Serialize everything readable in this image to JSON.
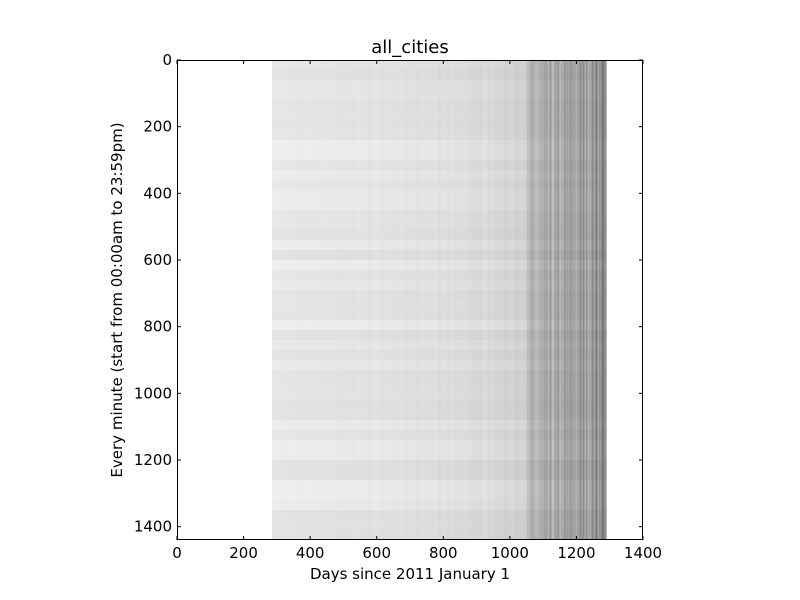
{
  "chart_data": {
    "type": "heatmap",
    "title": "all_cities",
    "xlabel": "Days since 2011 January 1",
    "ylabel": "Every minute (start from 00:00am to 23:59pm)",
    "xlim": [
      0,
      1400
    ],
    "ylim": [
      1440,
      0
    ],
    "y_axis_inverted": true,
    "x_ticks": [
      0,
      200,
      400,
      600,
      800,
      1000,
      1200,
      1400
    ],
    "y_ticks": [
      0,
      200,
      400,
      600,
      800,
      1000,
      1200,
      1400
    ],
    "x_tick_labels": [
      "0",
      "200",
      "400",
      "600",
      "800",
      "1000",
      "1200",
      "1400"
    ],
    "y_tick_labels": [
      "0",
      "200",
      "400",
      "600",
      "800",
      "1000",
      "1200",
      "1400"
    ],
    "grid": false,
    "legend": "none",
    "colormap": "white-to-black (count per minute)",
    "data_extent": {
      "first_day": 285,
      "last_day": 1290,
      "first_minute": 0,
      "last_minute": 1440
    },
    "density_profile": {
      "days": [
        285,
        400,
        600,
        800,
        950,
        1050,
        1060,
        1150,
        1250,
        1290
      ],
      "relative_density": [
        0.04,
        0.05,
        0.06,
        0.08,
        0.11,
        0.15,
        0.22,
        0.27,
        0.36,
        0.45
      ]
    },
    "colors": {
      "low": "#ffffff",
      "high": "#000000",
      "axis": "#000000",
      "background": "#ffffff"
    }
  }
}
